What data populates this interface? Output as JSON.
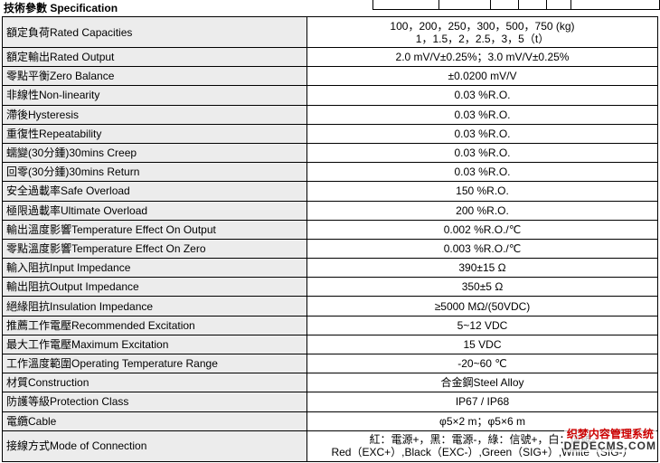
{
  "header": {
    "title": "技術參數 Specification"
  },
  "table": {
    "rows": [
      {
        "label": "額定負荷Rated Capacities",
        "lines": [
          "100，200，250，300，500，750 (kg)",
          "1，1.5，2，2.5，3，5（t）"
        ]
      },
      {
        "label": "額定輸出Rated Output",
        "lines": [
          "2.0 mV/V±0.25%；3.0 mV/V±0.25%"
        ]
      },
      {
        "label": "零點平衡Zero Balance",
        "lines": [
          "±0.0200 mV/V"
        ]
      },
      {
        "label": "非線性Non-linearity",
        "lines": [
          "0.03 %R.O."
        ]
      },
      {
        "label": "滯後Hysteresis",
        "lines": [
          "0.03 %R.O."
        ]
      },
      {
        "label": "重復性Repeatability",
        "lines": [
          "0.03 %R.O."
        ]
      },
      {
        "label": "蠕變(30分鍾)30mins Creep",
        "lines": [
          "0.03 %R.O."
        ]
      },
      {
        "label": "回零(30分鍾)30mins Return",
        "lines": [
          "0.03 %R.O."
        ]
      },
      {
        "label": "安全過載率Safe Overload",
        "lines": [
          "150 %R.O."
        ]
      },
      {
        "label": "極限過載率Ultimate Overload",
        "lines": [
          "200 %R.O."
        ]
      },
      {
        "label": "輸出溫度影響Temperature Effect On Output",
        "lines": [
          "0.002 %R.O./℃"
        ]
      },
      {
        "label": "零點溫度影響Temperature Effect On Zero",
        "lines": [
          "0.003 %R.O./℃"
        ]
      },
      {
        "label": "輸入阻抗Input Impedance",
        "lines": [
          "390±15 Ω"
        ]
      },
      {
        "label": "輸出阻抗Output Impedance",
        "lines": [
          "350±5 Ω"
        ]
      },
      {
        "label": "絕緣阻抗Insulation Impedance",
        "lines": [
          "≥5000 MΩ/(50VDC)"
        ]
      },
      {
        "label": "推薦工作電壓Recommended Excitation",
        "lines": [
          "5~12 VDC"
        ]
      },
      {
        "label": "最大工作電壓Maximum Excitation",
        "lines": [
          "15 VDC"
        ]
      },
      {
        "label": "工作溫度範圍Operating Temperature Range",
        "lines": [
          "-20~60 ℃"
        ]
      },
      {
        "label": "材質Construction",
        "lines": [
          "合金鋼Steel Alloy"
        ]
      },
      {
        "label": "防護等級Protection Class",
        "lines": [
          "IP67 / IP68"
        ]
      },
      {
        "label": "電纜Cable",
        "lines": [
          "φ5×2 m；φ5×6 m"
        ]
      },
      {
        "label": "接線方式Mode of Connection",
        "lines": [
          "紅：電源+，黑：電源-，綠：信號+，白：信號-",
          "Red（EXC+）,Black（EXC-）,Green（SIG+）,White（SIG-）"
        ]
      }
    ]
  },
  "watermark": {
    "line1": "织梦内容管理系统",
    "line2": "DEDECMS.COM"
  }
}
